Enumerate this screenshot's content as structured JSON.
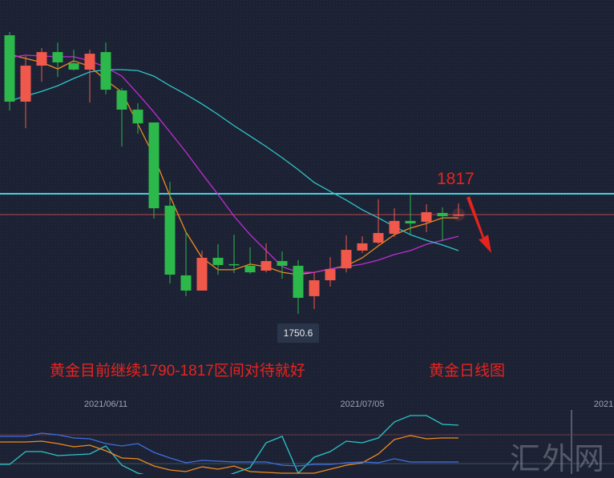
{
  "chart_data": {
    "type": "candlestick",
    "title": "黄金日线图",
    "x_tick_labels": [
      "2021/06/11",
      "2021/07/05",
      "2021"
    ],
    "colors": {
      "up": "#f0584b",
      "down": "#2db84b",
      "ma_fast": "#f08a1e",
      "ma_mid": "#c22bd6",
      "ma_slow": "#2ec4c9",
      "resistance": "#3fd2e0",
      "last_price": "#b8474c",
      "annotation": "#e8231e"
    },
    "candles": [
      {
        "o": 1904.6,
        "h": 1906.4,
        "l": 1863.0,
        "c": 1867.9
      },
      {
        "o": 1867.9,
        "h": 1893.1,
        "l": 1853.3,
        "c": 1887.8
      },
      {
        "o": 1887.8,
        "h": 1897.5,
        "l": 1878.9,
        "c": 1895.3
      },
      {
        "o": 1895.3,
        "h": 1900.6,
        "l": 1881.6,
        "c": 1889.6
      },
      {
        "o": 1889.1,
        "h": 1896.6,
        "l": 1885.1,
        "c": 1885.6
      },
      {
        "o": 1885.6,
        "h": 1896.6,
        "l": 1867.4,
        "c": 1894.4
      },
      {
        "o": 1895.3,
        "h": 1900.6,
        "l": 1871.9,
        "c": 1874.5
      },
      {
        "o": 1874.1,
        "h": 1875.4,
        "l": 1843.1,
        "c": 1863.5
      },
      {
        "o": 1863.5,
        "h": 1867.0,
        "l": 1850.2,
        "c": 1855.9
      },
      {
        "o": 1856.4,
        "h": 1856.4,
        "l": 1803.3,
        "c": 1809.0
      },
      {
        "o": 1810.4,
        "h": 1823.6,
        "l": 1767.4,
        "c": 1772.3
      },
      {
        "o": 1771.9,
        "h": 1796.2,
        "l": 1760.4,
        "c": 1763.5
      },
      {
        "o": 1763.5,
        "h": 1785.6,
        "l": 1763.5,
        "c": 1781.6
      },
      {
        "o": 1781.6,
        "h": 1789.1,
        "l": 1772.3,
        "c": 1777.6
      },
      {
        "o": 1778.1,
        "h": 1794.4,
        "l": 1773.2,
        "c": 1777.6
      },
      {
        "o": 1777.2,
        "h": 1787.4,
        "l": 1772.8,
        "c": 1773.6
      },
      {
        "o": 1774.5,
        "h": 1789.6,
        "l": 1773.6,
        "c": 1779.8
      },
      {
        "o": 1779.8,
        "h": 1785.1,
        "l": 1770.1,
        "c": 1777.2
      },
      {
        "o": 1777.2,
        "h": 1780.3,
        "l": 1750.6,
        "c": 1759.5
      },
      {
        "o": 1760.4,
        "h": 1773.6,
        "l": 1753.3,
        "c": 1769.2
      },
      {
        "o": 1769.2,
        "h": 1782.0,
        "l": 1765.7,
        "c": 1775.4
      },
      {
        "o": 1775.8,
        "h": 1794.0,
        "l": 1773.6,
        "c": 1786.0
      },
      {
        "o": 1785.6,
        "h": 1793.5,
        "l": 1784.3,
        "c": 1789.6
      },
      {
        "o": 1790.0,
        "h": 1813.9,
        "l": 1789.1,
        "c": 1795.3
      },
      {
        "o": 1794.9,
        "h": 1809.0,
        "l": 1793.1,
        "c": 1802.0
      },
      {
        "o": 1802.0,
        "h": 1817.0,
        "l": 1794.9,
        "c": 1800.6
      },
      {
        "o": 1801.5,
        "h": 1811.2,
        "l": 1795.8,
        "c": 1806.8
      },
      {
        "o": 1806.4,
        "h": 1809.5,
        "l": 1790.9,
        "c": 1804.6
      },
      {
        "o": 1805.1,
        "h": 1811.7,
        "l": 1804.6,
        "c": 1805.5
      }
    ],
    "moving_averages": [
      {
        "key": "ma_fast",
        "values": [
          1894.0,
          1891.8,
          1889.6,
          1886.0,
          1890.5,
          1887.4,
          1879.8,
          1873.2,
          1855.5,
          1837.8,
          1815.7,
          1795.8,
          1781.6,
          1775.0,
          1775.0,
          1778.1,
          1776.7,
          1773.6,
          1772.3,
          1773.6,
          1775.4,
          1777.2,
          1781.6,
          1788.2,
          1794.4,
          1798.0,
          1800.6,
          1803.7,
          1803.7
        ]
      },
      {
        "key": "ma_mid",
        "values": [
          1892.2,
          1893.6,
          1893.1,
          1892.7,
          1892.7,
          1890.5,
          1886.9,
          1882.0,
          1872.3,
          1862.1,
          1851.1,
          1840.0,
          1828.1,
          1816.6,
          1804.6,
          1794.4,
          1785.6,
          1776.7,
          1773.6,
          1773.6,
          1775.4,
          1776.7,
          1778.1,
          1780.3,
          1783.4,
          1785.6,
          1789.1,
          1791.3,
          1793.5
        ]
      },
      {
        "key": "ma_slow",
        "values": [
          1868.3,
          1871.0,
          1873.6,
          1876.7,
          1880.7,
          1884.3,
          1885.6,
          1885.6,
          1885.1,
          1882.0,
          1876.7,
          1871.9,
          1866.6,
          1860.8,
          1854.6,
          1848.9,
          1843.1,
          1836.9,
          1830.3,
          1823.2,
          1818.3,
          1813.5,
          1808.1,
          1803.7,
          1798.9,
          1794.4,
          1791.3,
          1788.7,
          1785.6
        ]
      }
    ],
    "resistance_level": 1817,
    "last_price": 1805.5,
    "low_marker": "1750.6",
    "annotations": {
      "resistance_label": "1817",
      "comment": "黄金目前继续1790-1817区间对待就好",
      "caption": "黄金日线图",
      "arrow": "down"
    },
    "indicator": {
      "reference_levels": [
        80,
        20
      ],
      "series": [
        {
          "key": "cyan",
          "color": "#2ec4c9",
          "values": [
            18.3,
            45,
            45,
            36.7,
            38.3,
            40,
            56.7,
            16.7,
            0,
            -6.7,
            -11.7,
            -11.7,
            -11.7,
            -11.7,
            0,
            11.7,
            63.3,
            76.7,
            0,
            33.3,
            45,
            66.7,
            63.3,
            73.3,
            106.7,
            120,
            120,
            101.7,
            100
          ]
        },
        {
          "key": "orange",
          "color": "#f08a1e",
          "values": [
            65,
            65,
            66.7,
            61.7,
            55,
            58.3,
            46.7,
            31.7,
            30,
            15,
            6.7,
            3.3,
            13.3,
            8.3,
            15,
            3.3,
            1.7,
            0,
            0,
            0,
            8.3,
            16.7,
            21.7,
            40,
            70,
            78.3,
            71.7,
            73.3,
            73.3
          ]
        },
        {
          "key": "blue",
          "color": "#3f6fe0",
          "values": [
            76.7,
            76.7,
            83.3,
            80,
            73.3,
            71.7,
            61.7,
            56.7,
            61.7,
            43.3,
            31.7,
            21.7,
            26.7,
            25,
            23.3,
            23.3,
            23.3,
            16.7,
            15,
            18.3,
            18.3,
            21.7,
            23.3,
            21.7,
            30,
            23.3,
            23.3,
            23.3,
            23.3
          ]
        }
      ]
    }
  },
  "watermark": "汇外网"
}
